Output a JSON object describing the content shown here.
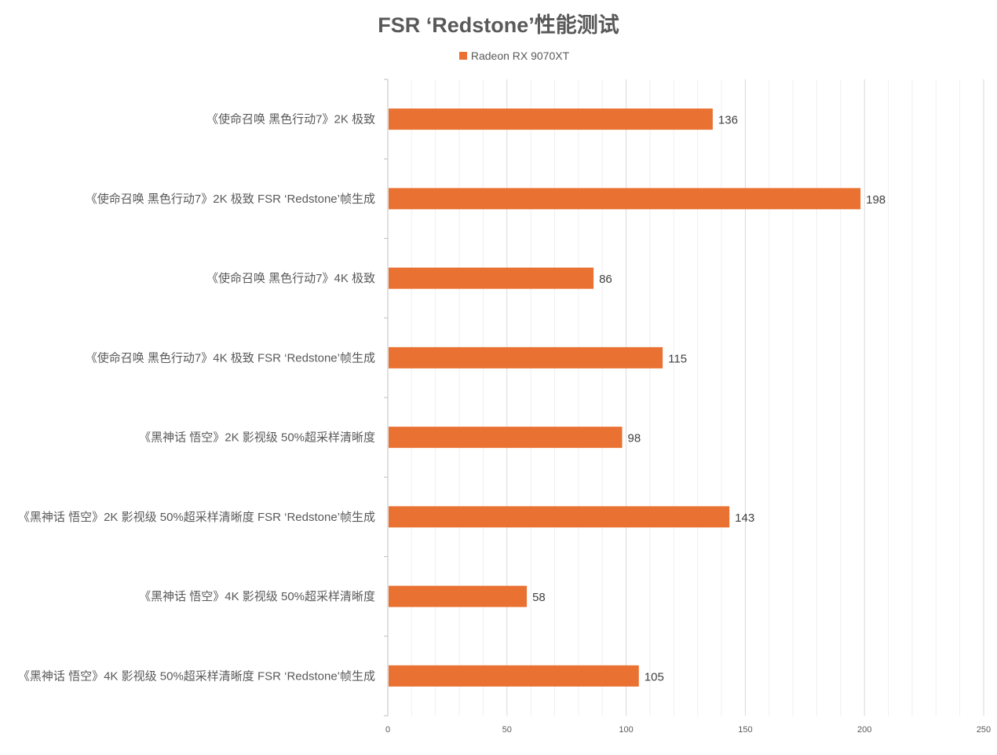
{
  "chart_data": {
    "type": "bar",
    "orientation": "horizontal",
    "title": "FSR ‘Redstone’性能测试",
    "categories": [
      "《使命召唤 黑色行动7》2K 极致",
      "《使命召唤 黑色行动7》2K 极致  FSR ‘Redstone’帧生成",
      "《使命召唤 黑色行动7》4K 极致",
      "《使命召唤 黑色行动7》4K 极致  FSR ‘Redstone’帧生成",
      "《黑神话 悟空》2K 影视级 50%超采样清晰度",
      "《黑神话 悟空》2K 影视级 50%超采样清晰度  FSR ‘Redstone’帧生成",
      "《黑神话 悟空》4K 影视级 50%超采样清晰度",
      "《黑神话 悟空》4K 影视级 50%超采样清晰度  FSR ‘Redstone’帧生成"
    ],
    "series": [
      {
        "name": "Radeon RX 9070XT",
        "color": "#E97132",
        "values": [
          136,
          198,
          86,
          115,
          98,
          143,
          58,
          105
        ]
      }
    ],
    "value_labels": [
      "136",
      "198",
      "86",
      "115",
      "98",
      "143",
      "58",
      "105"
    ],
    "x_ticks": [
      "0",
      "50",
      "100",
      "150",
      "200",
      "250"
    ],
    "xlim": [
      0,
      250
    ],
    "major_step": 50,
    "minor_step": 10,
    "grid": true,
    "legend_position": "top"
  },
  "colors": {
    "bar": "#E97132",
    "major_grid": "#D9D9D9",
    "minor_grid": "#EFEFEF",
    "axis": "#BFBFBF"
  }
}
